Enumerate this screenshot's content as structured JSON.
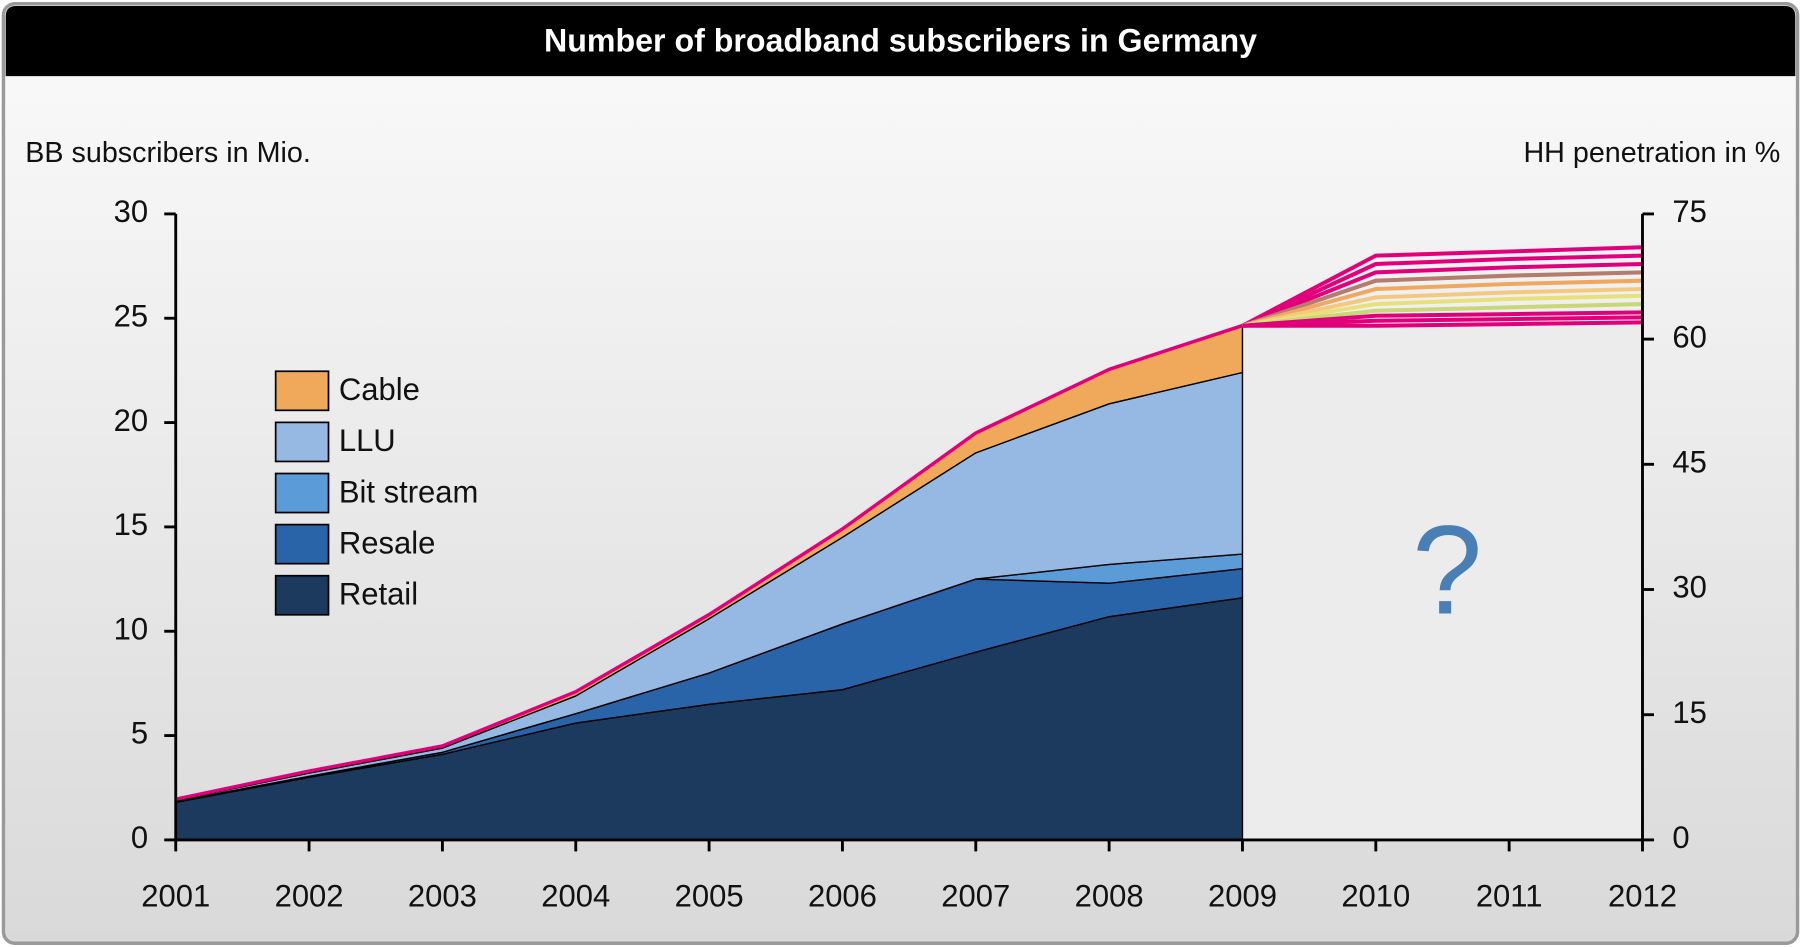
{
  "chart_data": {
    "type": "area",
    "title": "Number of broadband subscribers in Germany",
    "y_label": "BB subscribers in Mio.",
    "y2_label": "HH penetration in %",
    "x": [
      2001,
      2002,
      2003,
      2004,
      2005,
      2006,
      2007,
      2008,
      2009,
      2010,
      2011,
      2012
    ],
    "xlim": [
      2001,
      2012
    ],
    "xticks": [
      2001,
      2002,
      2003,
      2004,
      2005,
      2006,
      2007,
      2008,
      2009,
      2010,
      2011,
      2012
    ],
    "ylim": [
      0,
      30
    ],
    "yticks": [
      0,
      5,
      10,
      15,
      20,
      25,
      30
    ],
    "y2lim": [
      0,
      75
    ],
    "y2ticks": [
      0,
      15,
      30,
      45,
      60,
      75
    ],
    "stacked": true,
    "series": [
      {
        "name": "Retail",
        "color": "#1b3a5e",
        "values": [
          1.8,
          3.0,
          4.1,
          5.6,
          6.5,
          7.2,
          9.0,
          10.7,
          11.6,
          null,
          null,
          null
        ]
      },
      {
        "name": "Resale",
        "color": "#2a64a8",
        "values": [
          0.05,
          0.05,
          0.1,
          0.45,
          1.5,
          3.15,
          3.5,
          1.6,
          1.4,
          null,
          null,
          null
        ]
      },
      {
        "name": "Bit stream",
        "color": "#5b9bd8",
        "values": [
          0,
          0,
          0,
          0,
          0,
          0,
          0,
          0.9,
          0.7,
          null,
          null,
          null
        ]
      },
      {
        "name": "LLU",
        "color": "#95b9e3",
        "values": [
          0.05,
          0.15,
          0.2,
          0.85,
          2.6,
          4.15,
          6.05,
          7.7,
          8.7,
          null,
          null,
          null
        ]
      },
      {
        "name": "Cable",
        "color": "#f0a95a",
        "values": [
          0.05,
          0.1,
          0.1,
          0.2,
          0.2,
          0.4,
          0.95,
          1.65,
          2.25,
          null,
          null,
          null
        ]
      },
      {
        "color": "#e2007a",
        "axis": "y2",
        "values": [
          null,
          null,
          null,
          null,
          null,
          null,
          null,
          null,
          61.6,
          70.0,
          70.5,
          71.0
        ]
      },
      {
        "color": "#e2007a",
        "axis": "y2",
        "values": [
          null,
          null,
          null,
          null,
          null,
          null,
          null,
          null,
          61.6,
          69.0,
          69.6,
          70.0
        ]
      },
      {
        "color": "#e2007a",
        "axis": "y2",
        "values": [
          null,
          null,
          null,
          null,
          null,
          null,
          null,
          null,
          61.6,
          68.0,
          68.6,
          69.0
        ]
      },
      {
        "color": "#b37c6c",
        "axis": "y2",
        "values": [
          null,
          null,
          null,
          null,
          null,
          null,
          null,
          null,
          61.6,
          67.0,
          67.6,
          68.0
        ]
      },
      {
        "color": "#f0a860",
        "axis": "y2",
        "values": [
          null,
          null,
          null,
          null,
          null,
          null,
          null,
          null,
          61.6,
          66.0,
          66.6,
          67.0
        ]
      },
      {
        "color": "#f5c882",
        "axis": "y2",
        "values": [
          null,
          null,
          null,
          null,
          null,
          null,
          null,
          null,
          61.6,
          65.0,
          65.6,
          66.0
        ]
      },
      {
        "color": "#e8e07a",
        "axis": "y2",
        "values": [
          null,
          null,
          null,
          null,
          null,
          null,
          null,
          null,
          61.6,
          64.2,
          64.8,
          65.2
        ]
      },
      {
        "color": "#c8d878",
        "axis": "y2",
        "values": [
          null,
          null,
          null,
          null,
          null,
          null,
          null,
          null,
          61.6,
          63.4,
          63.8,
          64.2
        ]
      },
      {
        "color": "#e2007a",
        "axis": "y2",
        "values": [
          null,
          null,
          null,
          null,
          null,
          null,
          null,
          null,
          61.6,
          62.8,
          63.0,
          63.2
        ]
      },
      {
        "color": "#e2007a",
        "axis": "y2",
        "values": [
          null,
          null,
          null,
          null,
          null,
          null,
          null,
          null,
          61.6,
          62.2,
          62.4,
          62.6
        ]
      },
      {
        "color": "#e2007a",
        "axis": "y2",
        "values": [
          null,
          null,
          null,
          null,
          null,
          null,
          null,
          null,
          61.6,
          61.6,
          61.8,
          62.0
        ]
      }
    ],
    "annotation": "?"
  }
}
